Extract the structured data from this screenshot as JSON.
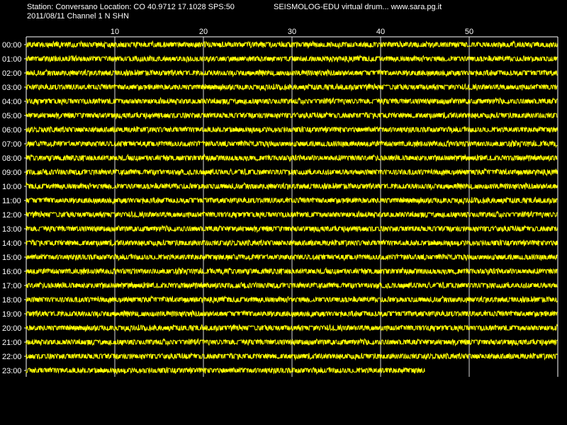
{
  "header": {
    "station_line": "Station: Conversano Location: CO 40.9712 17.1028 SPS:50",
    "date_line": "2011/08/11  Channel 1 N SHN",
    "title": "SEISMOLOG-EDU virtual drum... www.sara.pg.it"
  },
  "colors": {
    "background": "#000000",
    "trace": "#ffff00",
    "grid": "#ffffff",
    "text": "#ffffff"
  },
  "chart_data": {
    "type": "line",
    "title": "",
    "xlabel": "",
    "ylabel": "",
    "xlim": [
      0,
      60
    ],
    "x_ticks": [
      10,
      20,
      30,
      40,
      50
    ],
    "x_tick_labels": [
      "10",
      "20",
      "30",
      "40",
      "50"
    ],
    "grid": true,
    "rows": [
      {
        "label": "00:00",
        "start_min": 0,
        "end_min": 60
      },
      {
        "label": "01:00",
        "start_min": 0,
        "end_min": 60
      },
      {
        "label": "02:00",
        "start_min": 0,
        "end_min": 60
      },
      {
        "label": "03:00",
        "start_min": 0,
        "end_min": 60
      },
      {
        "label": "04:00",
        "start_min": 0,
        "end_min": 60
      },
      {
        "label": "05:00",
        "start_min": 0,
        "end_min": 60
      },
      {
        "label": "06:00",
        "start_min": 0,
        "end_min": 60
      },
      {
        "label": "07:00",
        "start_min": 0,
        "end_min": 60
      },
      {
        "label": "08:00",
        "start_min": 0,
        "end_min": 60
      },
      {
        "label": "09:00",
        "start_min": 0,
        "end_min": 60
      },
      {
        "label": "10:00",
        "start_min": 0,
        "end_min": 60
      },
      {
        "label": "11:00",
        "start_min": 0,
        "end_min": 60
      },
      {
        "label": "12:00",
        "start_min": 0,
        "end_min": 60
      },
      {
        "label": "13:00",
        "start_min": 0,
        "end_min": 60
      },
      {
        "label": "14:00",
        "start_min": 0,
        "end_min": 60
      },
      {
        "label": "15:00",
        "start_min": 0,
        "end_min": 60
      },
      {
        "label": "16:00",
        "start_min": 0,
        "end_min": 60
      },
      {
        "label": "17:00",
        "start_min": 0,
        "end_min": 60
      },
      {
        "label": "18:00",
        "start_min": 0,
        "end_min": 60
      },
      {
        "label": "19:00",
        "start_min": 0,
        "end_min": 60
      },
      {
        "label": "20:00",
        "start_min": 0,
        "end_min": 60
      },
      {
        "label": "21:00",
        "start_min": 0,
        "end_min": 60
      },
      {
        "label": "22:00",
        "start_min": 0,
        "end_min": 60
      },
      {
        "label": "23:00",
        "start_min": 0,
        "end_min": 45
      }
    ]
  }
}
